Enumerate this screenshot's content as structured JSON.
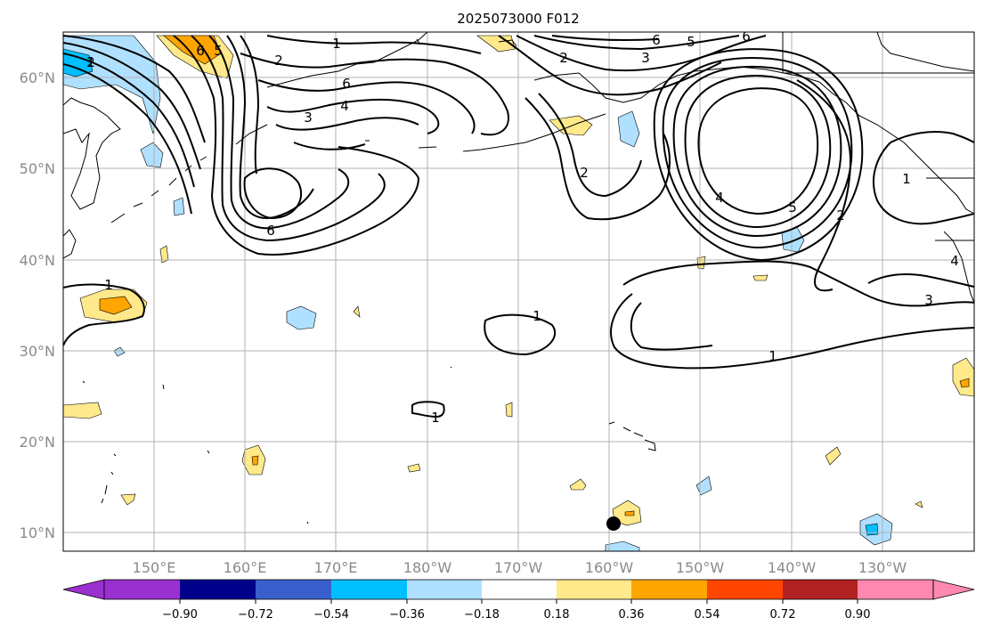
{
  "title": "2025073000 F012",
  "lat_labels": [
    "60°N",
    "50°N",
    "40°N",
    "30°N",
    "20°N",
    "10°N"
  ],
  "lon_labels": [
    "150°E",
    "160°E",
    "170°E",
    "180°W",
    "170°W",
    "160°W",
    "150°W",
    "140°W",
    "130°W"
  ],
  "contour_labels": [
    "1",
    "2",
    "5",
    "6",
    "1",
    "2",
    "3",
    "4",
    "6",
    "6",
    "5",
    "3",
    "6",
    "2",
    "6",
    "4",
    "2",
    "5",
    "2",
    "1",
    "1",
    "3",
    "1",
    "1",
    "1",
    "4"
  ],
  "colorbar": {
    "ticks": [
      "−0.90",
      "−0.72",
      "−0.54",
      "−0.36",
      "−0.18",
      "0.18",
      "0.36",
      "0.54",
      "0.72",
      "0.90"
    ],
    "colors": {
      "under": "#9b30d0",
      "b1": "#00008b",
      "b2": "#3a5fcd",
      "b3": "#00bfff",
      "b4": "#b0e0ff",
      "b5": "#ffffff",
      "b6": "#ffe98a",
      "b7": "#ffa500",
      "b8": "#ff4500",
      "b9": "#b22222",
      "over": "#ff88b0"
    }
  },
  "marker": {
    "lat": 11,
    "lon": "160°W"
  }
}
